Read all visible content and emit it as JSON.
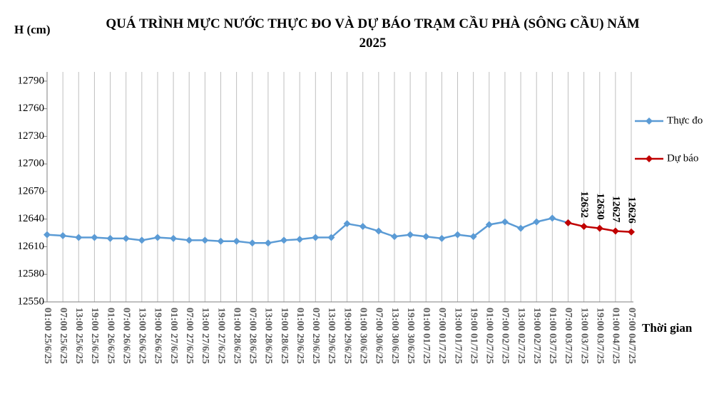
{
  "chart_data": {
    "type": "line",
    "title": "QUÁ TRÌNH MỰC NƯỚC THỰC ĐO VÀ DỰ BÁO TRẠM CẦU PHÀ (SÔNG CẦU) NĂM 2025",
    "y_label": "H (cm)",
    "x_label": "Thời gian",
    "categories": [
      "01:00 25/6/25",
      "07:00 25/6/25",
      "13:00 25/6/25",
      "19:00 25/6/25",
      "01:00 26/6/25",
      "07:00 26/6/25",
      "13:00 26/6/25",
      "19:00 26/6/25",
      "01:00 27/6/25",
      "07:00 27/6/25",
      "13:00 27/6/25",
      "19:00 27/6/25",
      "01:00 28/6/25",
      "07:00 28/6/25",
      "13:00 28/6/25",
      "19:00 28/6/25",
      "01:00 29/6/25",
      "07:00 29/6/25",
      "13:00 29/6/25",
      "19:00 29/6/25",
      "01:00 30/6/25",
      "07:00 30/6/25",
      "13:00 30/6/25",
      "19:00 30/6/25",
      "01:00 01/7/25",
      "07:00 01/7/25",
      "13:00 01/7/25",
      "19:00 01/7/25",
      "01:00 02/7/25",
      "07:00 02/7/25",
      "13:00 02/7/25",
      "19:00 02/7/25",
      "01:00 03/7/25",
      "07:00 03/7/25",
      "13:00 03/7/25",
      "19:00 03/7/25",
      "01:00 04/7/25",
      "07:00 04/7/25"
    ],
    "series": [
      {
        "name": "Thực đo",
        "color": "#5b9bd5",
        "values": [
          12623,
          12622,
          12620,
          12620,
          12619,
          12619,
          12617,
          12620,
          12619,
          12617,
          12617,
          12616,
          12616,
          12614,
          12614,
          12617,
          12618,
          12620,
          12620,
          12635,
          12632,
          12627,
          12621,
          12623,
          12621,
          12619,
          12623,
          12621,
          12634,
          12637,
          12630,
          12637,
          12641,
          12636,
          null,
          null,
          null,
          null
        ]
      },
      {
        "name": "Dự báo",
        "color": "#c00000",
        "values": [
          null,
          null,
          null,
          null,
          null,
          null,
          null,
          null,
          null,
          null,
          null,
          null,
          null,
          null,
          null,
          null,
          null,
          null,
          null,
          null,
          null,
          null,
          null,
          null,
          null,
          null,
          null,
          null,
          null,
          null,
          null,
          null,
          null,
          12636,
          12632,
          12630,
          12627,
          12626
        ],
        "value_labels": [
          null,
          null,
          null,
          null,
          null,
          null,
          null,
          null,
          null,
          null,
          null,
          null,
          null,
          null,
          null,
          null,
          null,
          null,
          null,
          null,
          null,
          null,
          null,
          null,
          null,
          null,
          null,
          null,
          null,
          null,
          null,
          null,
          null,
          null,
          "12632",
          "12630",
          "12627",
          "12626"
        ]
      }
    ],
    "ylim": [
      12550,
      12800
    ],
    "yticks": [
      12550,
      12580,
      12610,
      12640,
      12670,
      12700,
      12730,
      12760,
      12790
    ],
    "grid": true,
    "legend": "right"
  }
}
